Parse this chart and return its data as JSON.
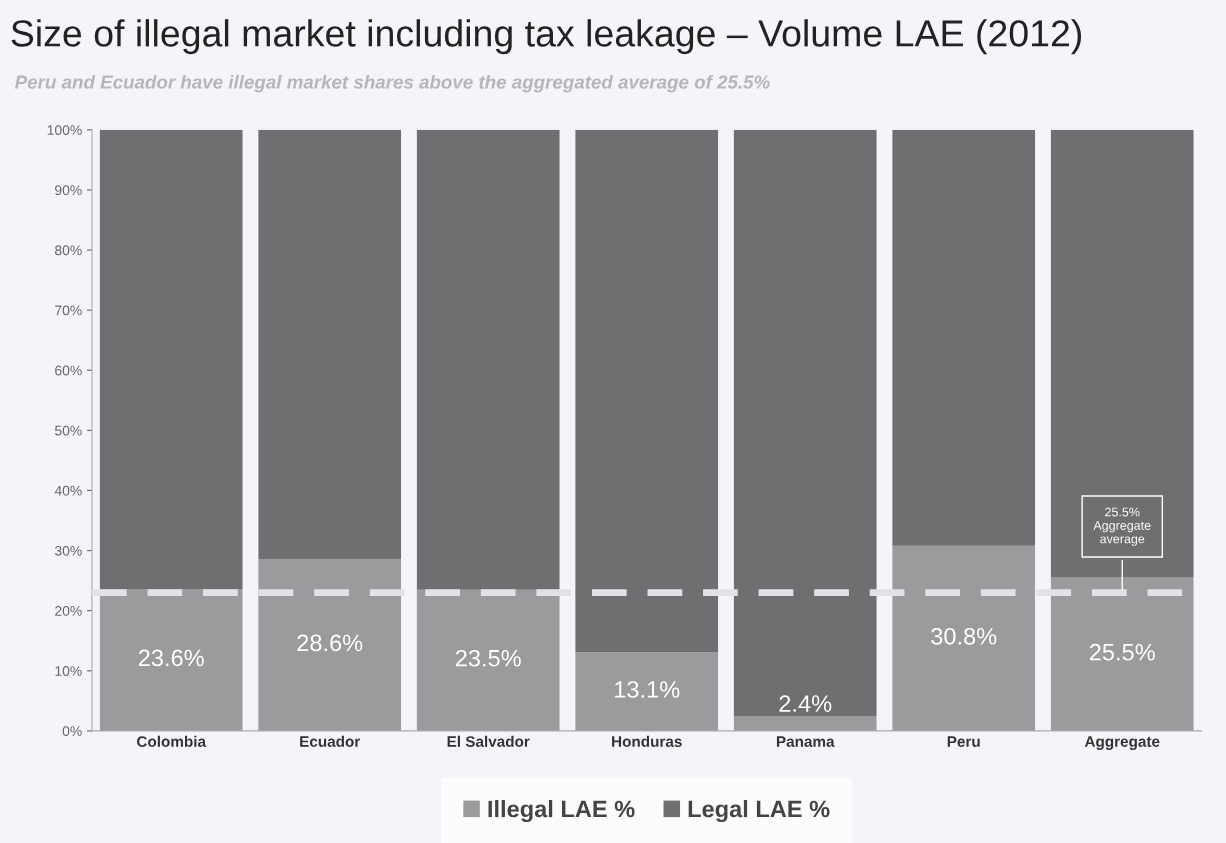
{
  "chart_data": {
    "type": "bar",
    "stacked": true,
    "title": "Size of illegal market including tax leakage – Volume LAE (2012)",
    "subtitle": "Peru and Ecuador have illegal market shares above the aggregated average of 25.5%",
    "categories": [
      "Colombia",
      "Ecuador",
      "El Salvador",
      "Honduras",
      "Panama",
      "Peru",
      "Aggregate"
    ],
    "series": [
      {
        "name": "Illegal LAE %",
        "color": "#9b9b9e",
        "values": [
          23.6,
          28.6,
          23.5,
          13.1,
          2.4,
          30.8,
          25.5
        ],
        "value_labels": [
          "23.6%",
          "28.6%",
          "23.5%",
          "13.1%",
          "2.4%",
          "30.8%",
          "25.5%"
        ]
      },
      {
        "name": "Legal LAE %",
        "color": "#6f6f72",
        "values": [
          76.4,
          71.4,
          76.5,
          86.9,
          97.6,
          69.2,
          74.5
        ]
      }
    ],
    "ylim": [
      0,
      100
    ],
    "yticks": [
      {
        "value": 0,
        "label": "0%"
      },
      {
        "value": 10,
        "label": "10%"
      },
      {
        "value": 20,
        "label": "20%"
      },
      {
        "value": 30,
        "label": "30%"
      },
      {
        "value": 40,
        "label": "40%"
      },
      {
        "value": 50,
        "label": "50%"
      },
      {
        "value": 60,
        "label": "60%"
      },
      {
        "value": 70,
        "label": "70%"
      },
      {
        "value": 80,
        "label": "80%"
      },
      {
        "value": 90,
        "label": "90%"
      },
      {
        "value": 100,
        "label": "100%"
      }
    ],
    "ref_lines": [
      {
        "axis": "y",
        "value": 23,
        "color": "#e2e2e6",
        "line_style": "dashed"
      }
    ],
    "annotations": [
      {
        "text": "25.5%\nAggregate\naverage",
        "x": "Aggregate",
        "y": 23
      }
    ],
    "grid": false,
    "legend": "bottom"
  }
}
